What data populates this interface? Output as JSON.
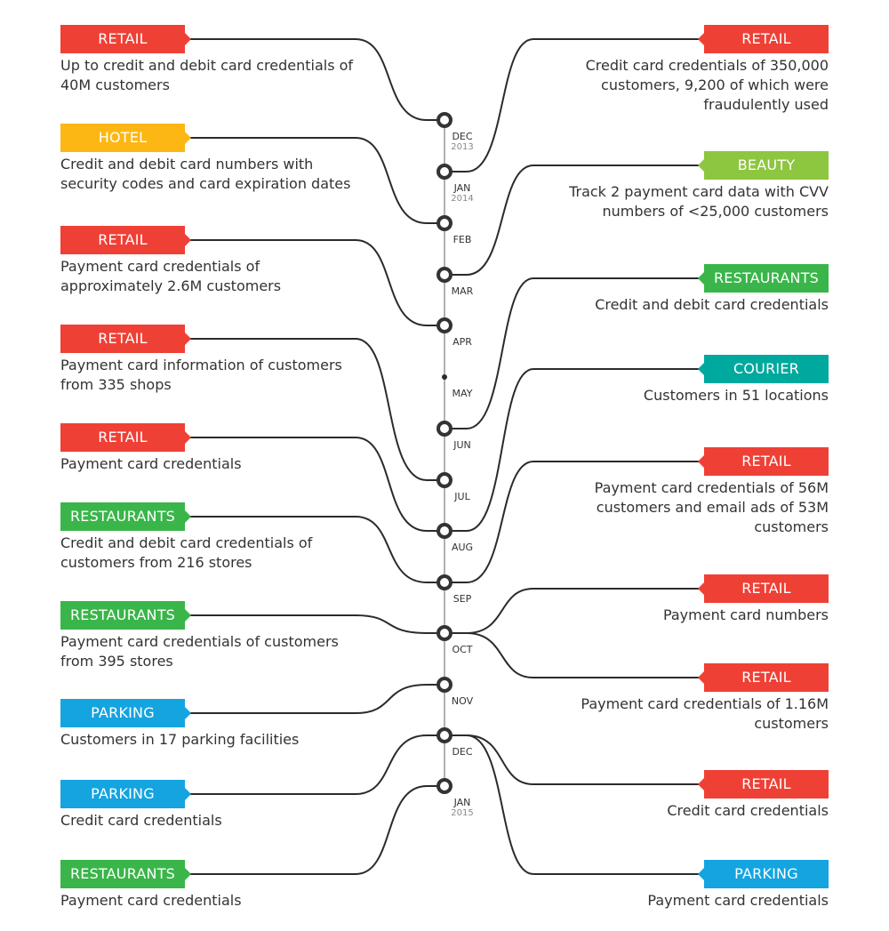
{
  "colors": {
    "retail": "#ef4036",
    "hotel": "#fdb714",
    "beauty": "#8dc63f",
    "restaurants": "#3ab54a",
    "courier": "#00a99d",
    "parking": "#14a4e0",
    "line": "#2b2b2b",
    "axis": "#b0b0b0"
  },
  "timeline": [
    {
      "month": "DEC",
      "year": "2013"
    },
    {
      "month": "JAN",
      "year": "2014"
    },
    {
      "month": "FEB"
    },
    {
      "month": "MAR"
    },
    {
      "month": "APR"
    },
    {
      "month": "MAY",
      "marker": "dot"
    },
    {
      "month": "JUN"
    },
    {
      "month": "JUL"
    },
    {
      "month": "AUG"
    },
    {
      "month": "SEP"
    },
    {
      "month": "OCT"
    },
    {
      "month": "NOV"
    },
    {
      "month": "DEC"
    },
    {
      "month": "JAN",
      "year": "2015"
    }
  ],
  "left_events": [
    {
      "category": "RETAIL",
      "color": "retail",
      "node": 0,
      "description": [
        "Up to credit and debit card credentials of",
        "40M customers"
      ]
    },
    {
      "category": "HOTEL",
      "color": "hotel",
      "node": 2,
      "description": [
        "Credit and debit card numbers with",
        "security codes and card expiration dates"
      ]
    },
    {
      "category": "RETAIL",
      "color": "retail",
      "node": 4,
      "description": [
        "Payment card credentials of",
        "approximately 2.6M customers"
      ]
    },
    {
      "category": "RETAIL",
      "color": "retail",
      "node": 7,
      "description": [
        "Payment card information of customers",
        "from 335 shops"
      ]
    },
    {
      "category": "RETAIL",
      "color": "retail",
      "node": 8,
      "description": [
        "Payment card credentials"
      ]
    },
    {
      "category": "RESTAURANTS",
      "color": "restaurants",
      "node": 9,
      "description": [
        "Credit and debit card credentials of",
        "customers from 216 stores"
      ]
    },
    {
      "category": "RESTAURANTS",
      "color": "restaurants",
      "node": 10,
      "description": [
        "Payment card credentials of customers",
        "from 395 stores"
      ]
    },
    {
      "category": "PARKING",
      "color": "parking",
      "node": 11,
      "description": [
        "Customers in 17 parking facilities"
      ]
    },
    {
      "category": "PARKING",
      "color": "parking",
      "node": 12,
      "description": [
        "Credit card credentials"
      ]
    },
    {
      "category": "RESTAURANTS",
      "color": "restaurants",
      "node": 13,
      "description": [
        "Payment card credentials"
      ]
    }
  ],
  "right_events": [
    {
      "category": "RETAIL",
      "color": "retail",
      "node": 1,
      "description": [
        "Credit card credentials of 350,000",
        "customers, 9,200 of which were",
        "fraudulently used"
      ]
    },
    {
      "category": "BEAUTY",
      "color": "beauty",
      "node": 3,
      "description": [
        "Track 2 payment card data with CVV",
        "numbers of <25,000 customers"
      ]
    },
    {
      "category": "RESTAURANTS",
      "color": "restaurants",
      "node": 6,
      "description": [
        "Credit and debit card credentials"
      ]
    },
    {
      "category": "COURIER",
      "color": "courier",
      "node": 8,
      "description": [
        "Customers in 51 locations"
      ]
    },
    {
      "category": "RETAIL",
      "color": "retail",
      "node": 9,
      "description": [
        "Payment card credentials of 56M",
        "customers and email ads of 53M",
        "customers"
      ]
    },
    {
      "category": "RETAIL",
      "color": "retail",
      "node": 10,
      "description": [
        "Payment card numbers"
      ]
    },
    {
      "category": "RETAIL",
      "color": "retail",
      "node": 10,
      "description": [
        "Payment card credentials of 1.16M",
        "customers"
      ]
    },
    {
      "category": "RETAIL",
      "color": "retail",
      "node": 12,
      "description": [
        "Credit card credentials"
      ]
    },
    {
      "category": "PARKING",
      "color": "parking",
      "node": 12,
      "description": [
        "Payment card credentials"
      ]
    }
  ]
}
